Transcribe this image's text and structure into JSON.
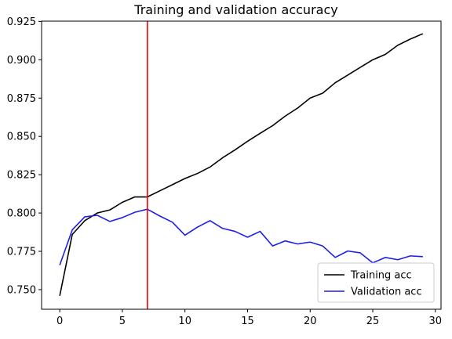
{
  "chart_data": {
    "type": "line",
    "title": "Training and validation accuracy",
    "xlabel": "",
    "ylabel": "",
    "xlim": [
      -1.45,
      30.45
    ],
    "ylim": [
      0.7372,
      0.9252
    ],
    "xticks": [
      0,
      5,
      10,
      15,
      20,
      25,
      30
    ],
    "yticks": [
      0.75,
      0.775,
      0.8,
      0.825,
      0.85,
      0.875,
      0.9,
      0.925
    ],
    "xtick_labels": [
      "0",
      "5",
      "10",
      "15",
      "20",
      "25",
      "30"
    ],
    "ytick_labels": [
      "0.750",
      "0.775",
      "0.800",
      "0.825",
      "0.850",
      "0.875",
      "0.900",
      "0.925"
    ],
    "grid": false,
    "legend_position": "bottom-right",
    "vline": {
      "x": 7,
      "color": "#ff0000"
    },
    "x": [
      0,
      1,
      2,
      3,
      4,
      5,
      6,
      7,
      8,
      9,
      10,
      11,
      12,
      13,
      14,
      15,
      16,
      17,
      18,
      19,
      20,
      21,
      22,
      23,
      24,
      25,
      26,
      27,
      28,
      29
    ],
    "series": [
      {
        "name": "Training acc",
        "color": "#000000",
        "values": [
          0.746,
          0.786,
          0.795,
          0.8,
          0.802,
          0.807,
          0.8105,
          0.8105,
          0.8145,
          0.8185,
          0.8225,
          0.8258,
          0.83,
          0.836,
          0.8412,
          0.8468,
          0.852,
          0.857,
          0.8632,
          0.8685,
          0.875,
          0.8782,
          0.885,
          0.89,
          0.895,
          0.9,
          0.9035,
          0.9095,
          0.9135,
          0.917
        ]
      },
      {
        "name": "Validation acc",
        "color": "#1f1fe6",
        "values": [
          0.766,
          0.789,
          0.7975,
          0.7985,
          0.7945,
          0.797,
          0.8005,
          0.8025,
          0.798,
          0.794,
          0.7855,
          0.7908,
          0.795,
          0.79,
          0.788,
          0.7842,
          0.788,
          0.7785,
          0.7818,
          0.7798,
          0.781,
          0.7785,
          0.771,
          0.7752,
          0.774,
          0.7675,
          0.771,
          0.7695,
          0.772,
          0.7715
        ]
      }
    ]
  }
}
